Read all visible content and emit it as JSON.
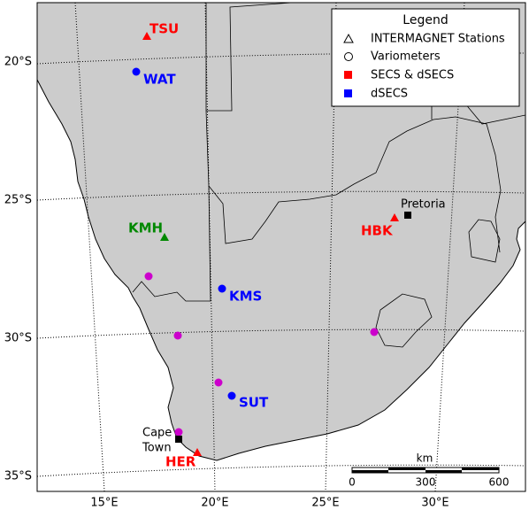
{
  "axes": {
    "lat_labels": [
      "20°S",
      "25°S",
      "30°S",
      "35°S"
    ],
    "lon_labels": [
      "15°E",
      "20°E",
      "25°E",
      "30°E"
    ]
  },
  "legend": {
    "title": "Legend",
    "entries": [
      "INTERMAGNET Stations",
      "Variometers",
      "SECS & dSECS",
      "dSECS"
    ]
  },
  "stations": [
    {
      "label": "TSU"
    },
    {
      "label": "WAT"
    },
    {
      "label": "KMH"
    },
    {
      "label": "KMS"
    },
    {
      "label": "SUT"
    },
    {
      "label": "HER"
    },
    {
      "label": "HBK"
    }
  ],
  "places": [
    {
      "label": "Pretoria"
    },
    {
      "lines": [
        "Cape",
        "Town"
      ]
    }
  ],
  "scale_bar": {
    "unit": "km",
    "labels": [
      0,
      300,
      600
    ]
  }
}
